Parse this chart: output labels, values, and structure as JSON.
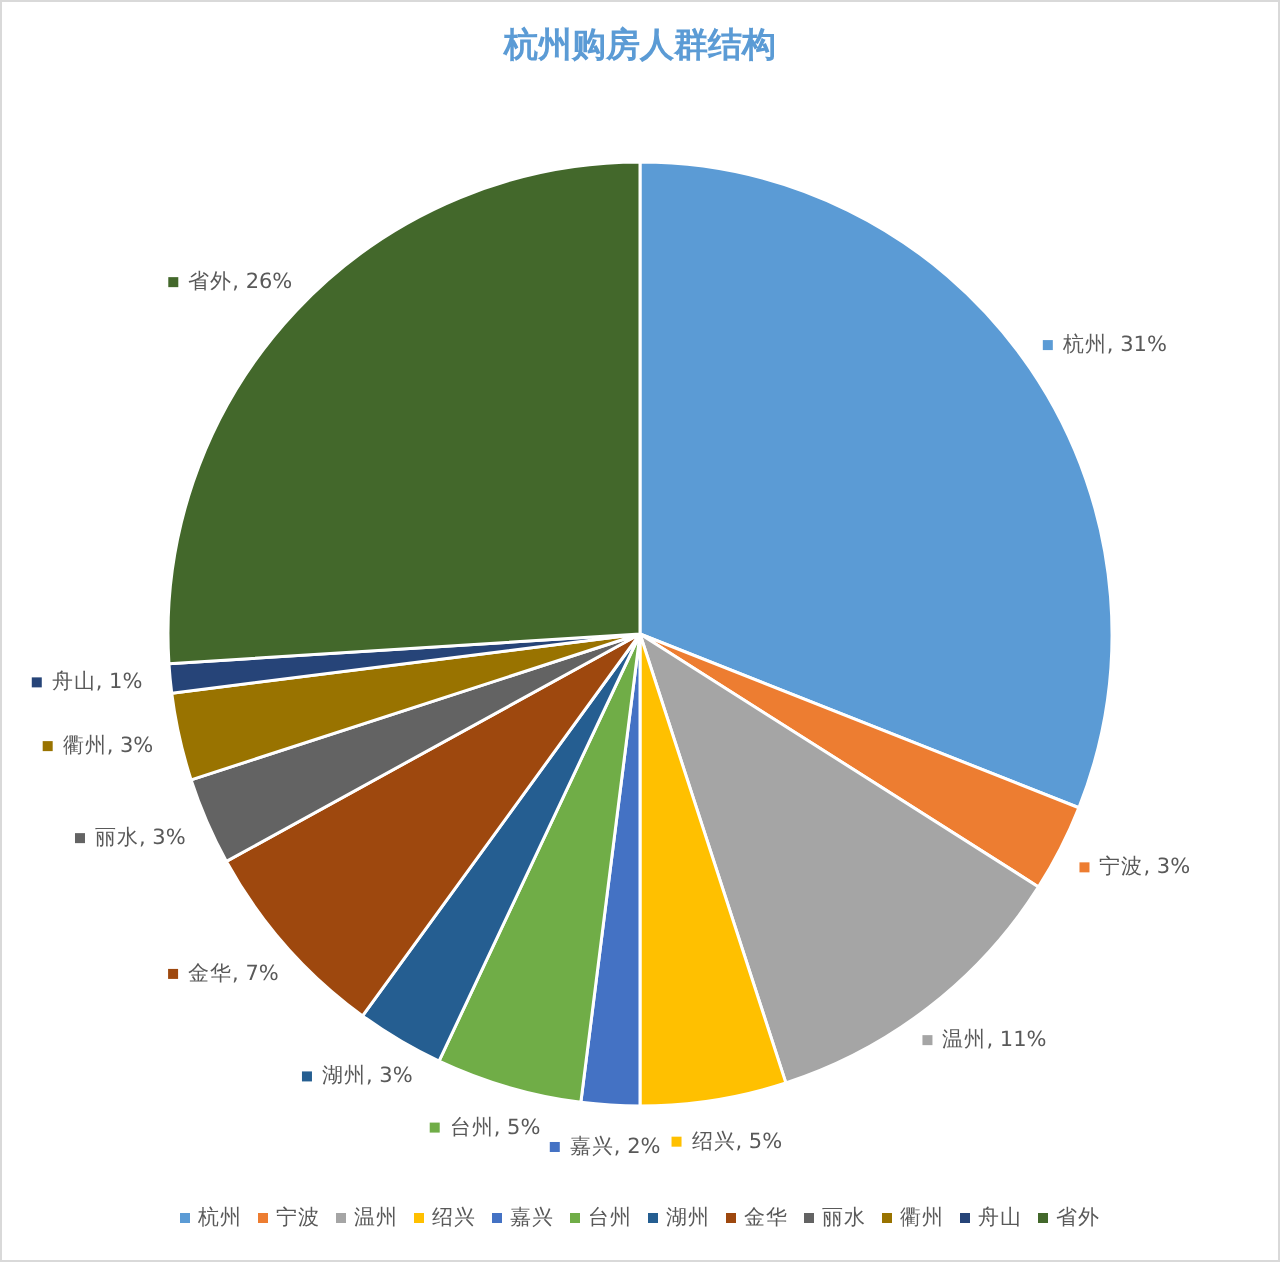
{
  "chart_data": {
    "type": "pie",
    "title": "杭州购房人群结构",
    "categories": [
      "杭州",
      "宁波",
      "温州",
      "绍兴",
      "嘉兴",
      "台州",
      "湖州",
      "金华",
      "丽水",
      "衢州",
      "舟山",
      "省外"
    ],
    "values": [
      31,
      3,
      11,
      5,
      2,
      5,
      3,
      7,
      3,
      3,
      1,
      26
    ],
    "colors": [
      "#5b9bd5",
      "#ed7d31",
      "#a5a5a5",
      "#ffc000",
      "#4472c4",
      "#70ad47",
      "#255e91",
      "#9e480e",
      "#636363",
      "#997300",
      "#264478",
      "#43682b"
    ],
    "value_labels": [
      "杭州, 31%",
      "宁波, 3%",
      "温州, 11%",
      "绍兴, 5%",
      "嘉兴, 2%",
      "台州, 5%",
      "湖州, 3%",
      "金华, 7%",
      "丽水, 3%",
      "衢州, 3%",
      "舟山, 1%",
      "省外, 26%"
    ],
    "legend": "bottom"
  }
}
